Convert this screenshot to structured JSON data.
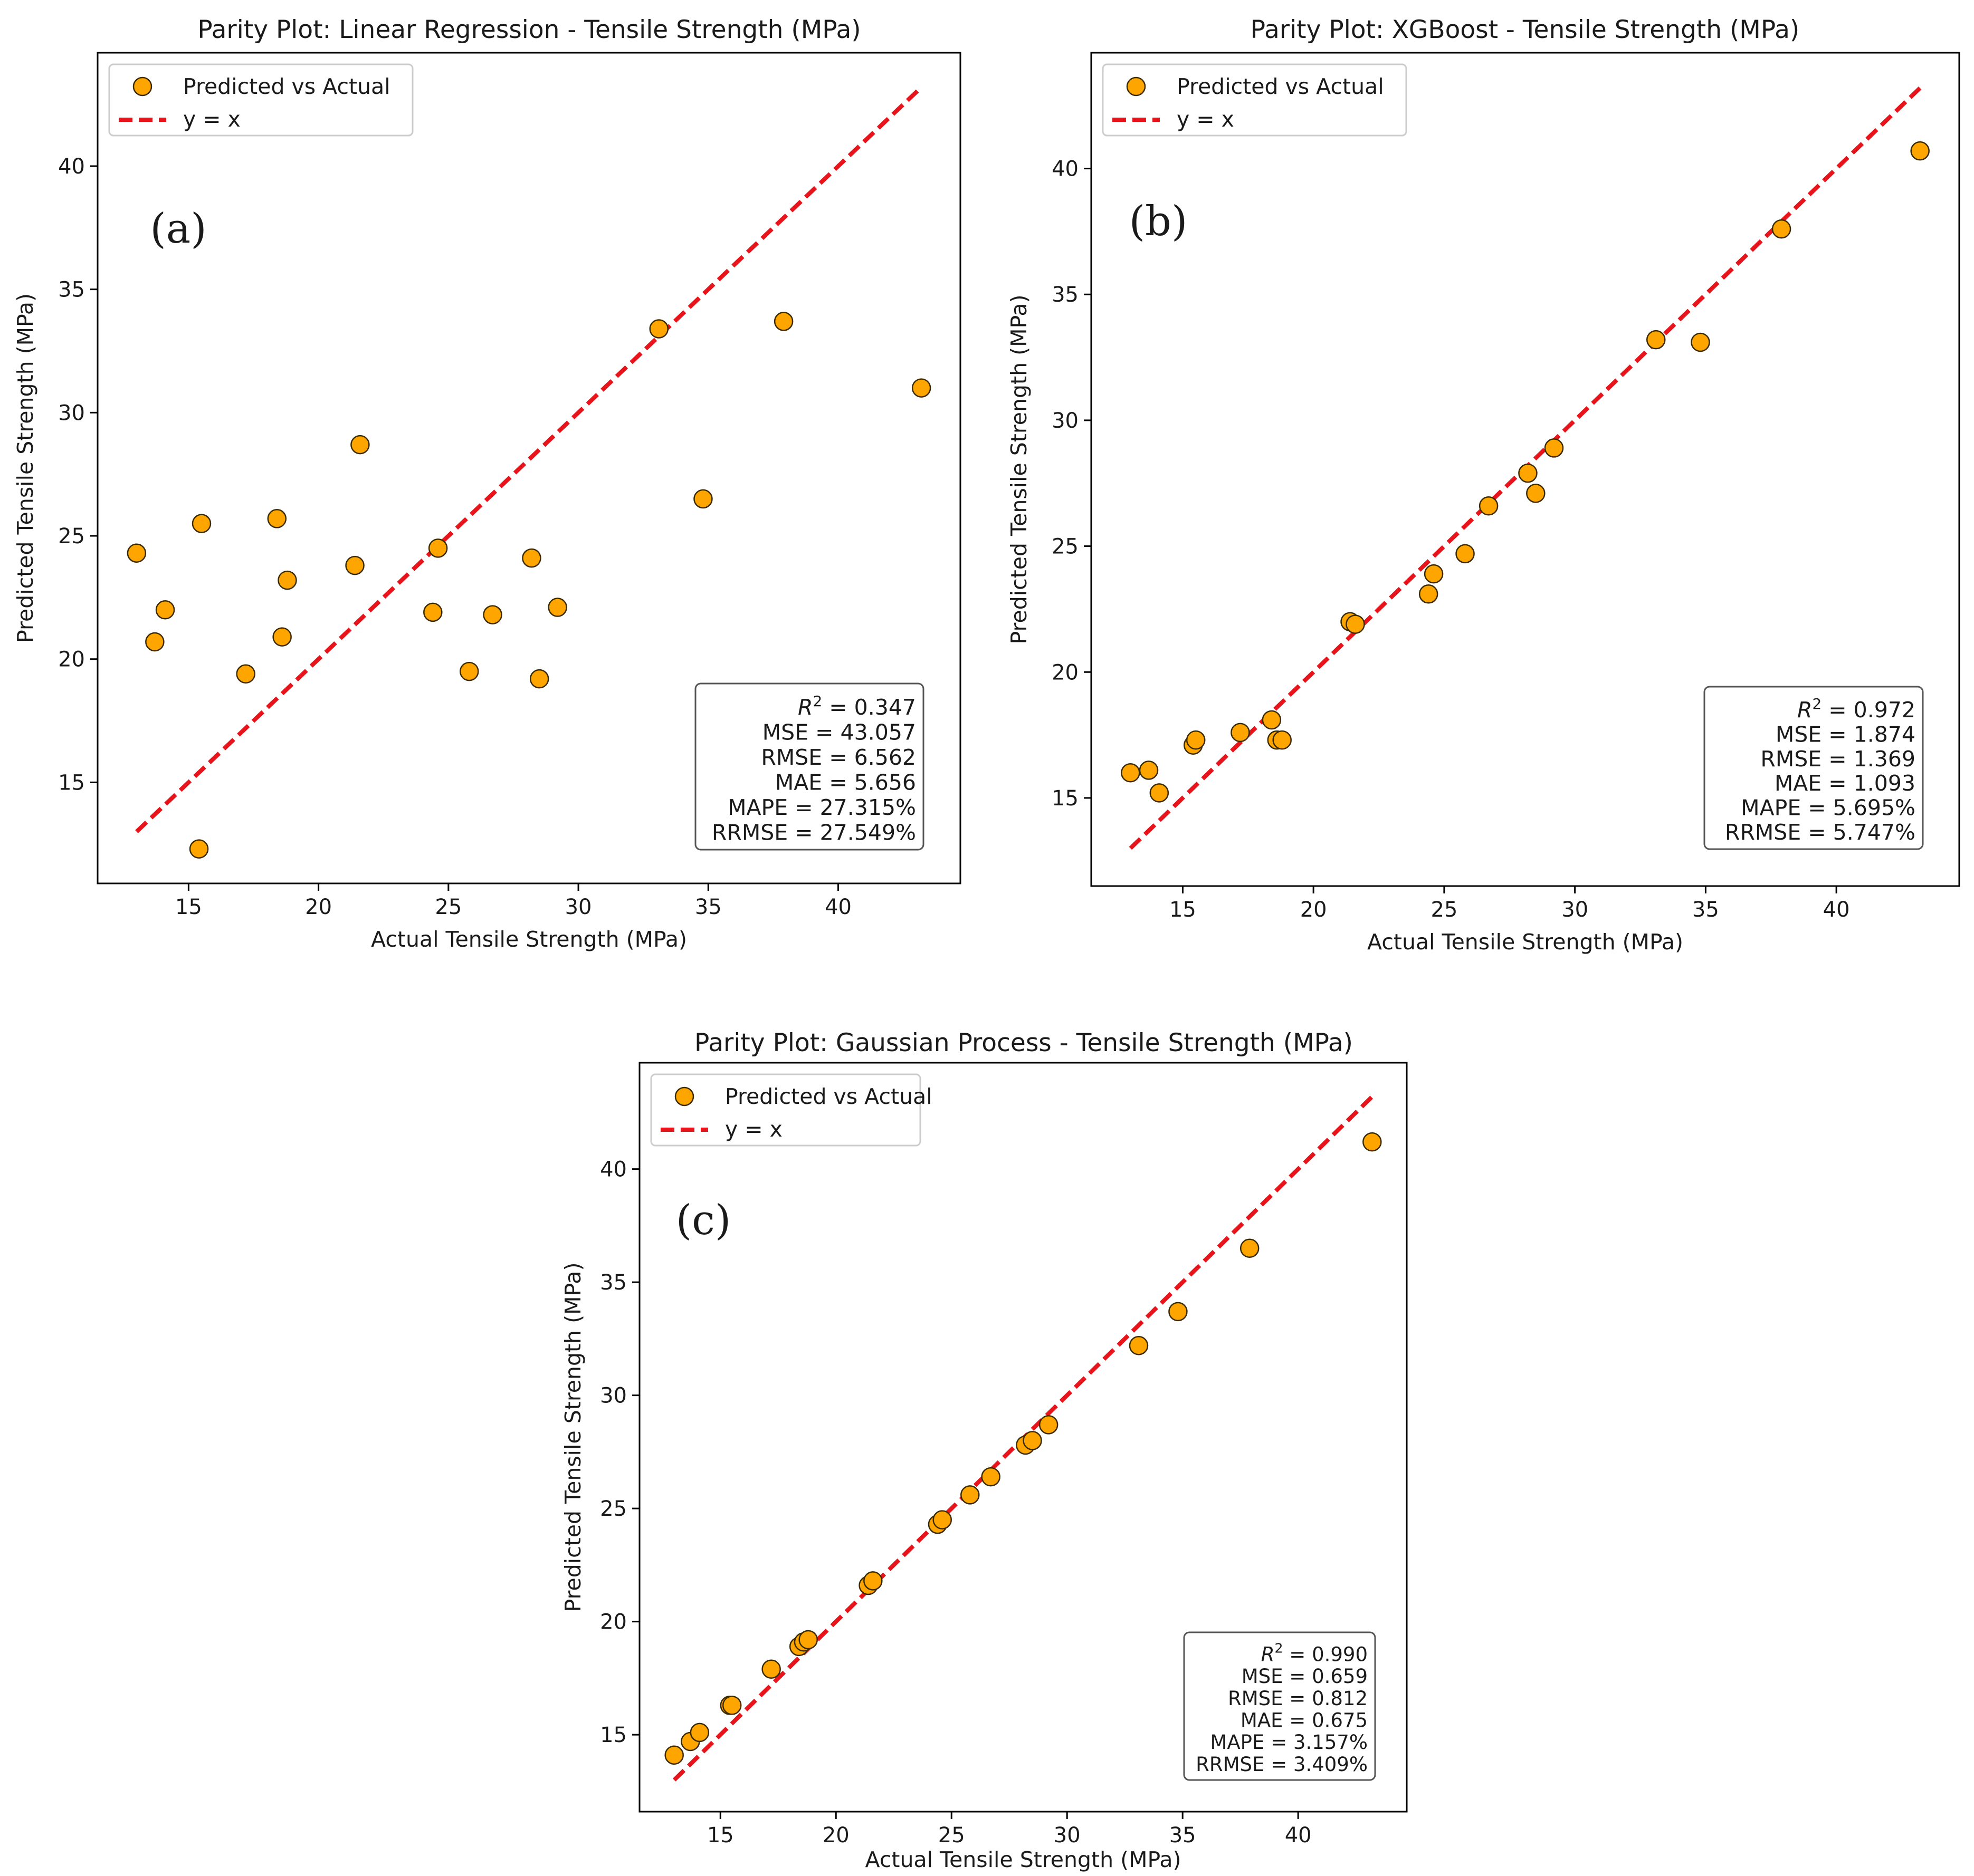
{
  "chart_data": [
    {
      "type": "scatter",
      "panel_label": "(a)",
      "title": "Parity Plot: Linear Regression - Tensile Strength (MPa)",
      "xlabel": "Actual Tensile Strength (MPa)",
      "ylabel": "Predicted Tensile Strength (MPa)",
      "xlim": [
        11.5,
        44.7
      ],
      "ylim": [
        10.9,
        44.6
      ],
      "xticks": [
        15,
        20,
        25,
        30,
        35,
        40
      ],
      "yticks": [
        15,
        20,
        25,
        30,
        35,
        40
      ],
      "legend_position": "upper-left",
      "legend": [
        {
          "kind": "marker",
          "label": "Predicted vs Actual"
        },
        {
          "kind": "line",
          "label": "y = x"
        }
      ],
      "reference_line": {
        "from": 13.0,
        "to": 43.2
      },
      "colors": {
        "marker_fill": "#FFA500",
        "marker_edge": "#3a2a00",
        "reference_line": "#E8141B"
      },
      "metrics_position": "lower-right",
      "metrics": [
        {
          "name": "R",
          "sup": "2",
          "value": "0.347"
        },
        {
          "name": "MSE",
          "value": "43.057"
        },
        {
          "name": "RMSE",
          "value": "6.562"
        },
        {
          "name": "MAE",
          "value": "5.656"
        },
        {
          "name": "MAPE",
          "value": "27.315%"
        },
        {
          "name": "RRMSE",
          "value": "27.549%"
        }
      ],
      "points": [
        {
          "x": 13.0,
          "y": 24.3
        },
        {
          "x": 13.7,
          "y": 20.7
        },
        {
          "x": 14.1,
          "y": 22.0
        },
        {
          "x": 15.4,
          "y": 12.3
        },
        {
          "x": 15.5,
          "y": 25.5
        },
        {
          "x": 17.2,
          "y": 19.4
        },
        {
          "x": 18.4,
          "y": 25.7
        },
        {
          "x": 18.6,
          "y": 20.9
        },
        {
          "x": 18.8,
          "y": 23.2
        },
        {
          "x": 21.4,
          "y": 23.8
        },
        {
          "x": 21.6,
          "y": 28.7
        },
        {
          "x": 24.4,
          "y": 21.9
        },
        {
          "x": 24.6,
          "y": 24.5
        },
        {
          "x": 25.8,
          "y": 19.5
        },
        {
          "x": 26.7,
          "y": 21.8
        },
        {
          "x": 28.2,
          "y": 24.1
        },
        {
          "x": 28.5,
          "y": 19.2
        },
        {
          "x": 29.2,
          "y": 22.1
        },
        {
          "x": 33.1,
          "y": 33.4
        },
        {
          "x": 34.8,
          "y": 26.5
        },
        {
          "x": 37.9,
          "y": 33.7
        },
        {
          "x": 43.2,
          "y": 31.0
        }
      ]
    },
    {
      "type": "scatter",
      "panel_label": "(b)",
      "title": "Parity Plot: XGBoost - Tensile Strength (MPa)",
      "xlabel": "Actual Tensile Strength (MPa)",
      "ylabel": "Predicted Tensile Strength (MPa)",
      "xlim": [
        11.5,
        44.7
      ],
      "ylim": [
        11.5,
        44.6
      ],
      "xticks": [
        15,
        20,
        25,
        30,
        35,
        40
      ],
      "yticks": [
        15,
        20,
        25,
        30,
        35,
        40
      ],
      "legend_position": "upper-left",
      "legend": [
        {
          "kind": "marker",
          "label": "Predicted vs Actual"
        },
        {
          "kind": "line",
          "label": "y = x"
        }
      ],
      "reference_line": {
        "from": 13.0,
        "to": 43.2
      },
      "colors": {
        "marker_fill": "#FFA500",
        "marker_edge": "#3a2a00",
        "reference_line": "#E8141B"
      },
      "metrics_position": "lower-right",
      "metrics": [
        {
          "name": "R",
          "sup": "2",
          "value": "0.972"
        },
        {
          "name": "MSE",
          "value": "1.874"
        },
        {
          "name": "RMSE",
          "value": "1.369"
        },
        {
          "name": "MAE",
          "value": "1.093"
        },
        {
          "name": "MAPE",
          "value": "5.695%"
        },
        {
          "name": "RRMSE",
          "value": "5.747%"
        }
      ],
      "points": [
        {
          "x": 13.0,
          "y": 16.0
        },
        {
          "x": 13.7,
          "y": 16.1
        },
        {
          "x": 14.1,
          "y": 15.2
        },
        {
          "x": 15.4,
          "y": 17.1
        },
        {
          "x": 15.5,
          "y": 17.3
        },
        {
          "x": 17.2,
          "y": 17.6
        },
        {
          "x": 18.4,
          "y": 18.1
        },
        {
          "x": 18.6,
          "y": 17.3
        },
        {
          "x": 18.8,
          "y": 17.3
        },
        {
          "x": 21.4,
          "y": 22.0
        },
        {
          "x": 21.6,
          "y": 21.9
        },
        {
          "x": 24.4,
          "y": 23.1
        },
        {
          "x": 24.6,
          "y": 23.9
        },
        {
          "x": 25.8,
          "y": 24.7
        },
        {
          "x": 26.7,
          "y": 26.6
        },
        {
          "x": 28.2,
          "y": 27.9
        },
        {
          "x": 28.5,
          "y": 27.1
        },
        {
          "x": 29.2,
          "y": 28.9
        },
        {
          "x": 33.1,
          "y": 33.2
        },
        {
          "x": 34.8,
          "y": 33.1
        },
        {
          "x": 37.9,
          "y": 37.6
        },
        {
          "x": 43.2,
          "y": 40.7
        }
      ]
    },
    {
      "type": "scatter",
      "panel_label": "(c)",
      "title": "Parity Plot: Gaussian Process - Tensile Strength (MPa)",
      "xlabel": "Actual Tensile Strength (MPa)",
      "ylabel": "Predicted Tensile Strength (MPa)",
      "xlim": [
        11.5,
        44.7
      ],
      "ylim": [
        11.6,
        44.7
      ],
      "xticks": [
        15,
        20,
        25,
        30,
        35,
        40
      ],
      "yticks": [
        15,
        20,
        25,
        30,
        35,
        40
      ],
      "legend_position": "upper-left",
      "legend": [
        {
          "kind": "marker",
          "label": "Predicted vs Actual"
        },
        {
          "kind": "line",
          "label": "y = x"
        }
      ],
      "reference_line": {
        "from": 13.0,
        "to": 43.2
      },
      "colors": {
        "marker_fill": "#FFA500",
        "marker_edge": "#3a2a00",
        "reference_line": "#E8141B"
      },
      "metrics_position": "lower-right",
      "metrics": [
        {
          "name": "R",
          "sup": "2",
          "value": "0.990"
        },
        {
          "name": "MSE",
          "value": "0.659"
        },
        {
          "name": "RMSE",
          "value": "0.812"
        },
        {
          "name": "MAE",
          "value": "0.675"
        },
        {
          "name": "MAPE",
          "value": "3.157%"
        },
        {
          "name": "RRMSE",
          "value": "3.409%"
        }
      ],
      "points": [
        {
          "x": 13.0,
          "y": 14.1
        },
        {
          "x": 13.7,
          "y": 14.7
        },
        {
          "x": 14.1,
          "y": 15.1
        },
        {
          "x": 15.4,
          "y": 16.3
        },
        {
          "x": 15.5,
          "y": 16.3
        },
        {
          "x": 17.2,
          "y": 17.9
        },
        {
          "x": 18.4,
          "y": 18.9
        },
        {
          "x": 18.6,
          "y": 19.1
        },
        {
          "x": 18.8,
          "y": 19.2
        },
        {
          "x": 21.4,
          "y": 21.6
        },
        {
          "x": 21.6,
          "y": 21.8
        },
        {
          "x": 24.4,
          "y": 24.3
        },
        {
          "x": 24.6,
          "y": 24.5
        },
        {
          "x": 25.8,
          "y": 25.6
        },
        {
          "x": 26.7,
          "y": 26.4
        },
        {
          "x": 28.2,
          "y": 27.8
        },
        {
          "x": 28.5,
          "y": 28.0
        },
        {
          "x": 29.2,
          "y": 28.7
        },
        {
          "x": 33.1,
          "y": 32.2
        },
        {
          "x": 34.8,
          "y": 33.7
        },
        {
          "x": 37.9,
          "y": 36.5
        },
        {
          "x": 43.2,
          "y": 41.2
        }
      ]
    }
  ]
}
